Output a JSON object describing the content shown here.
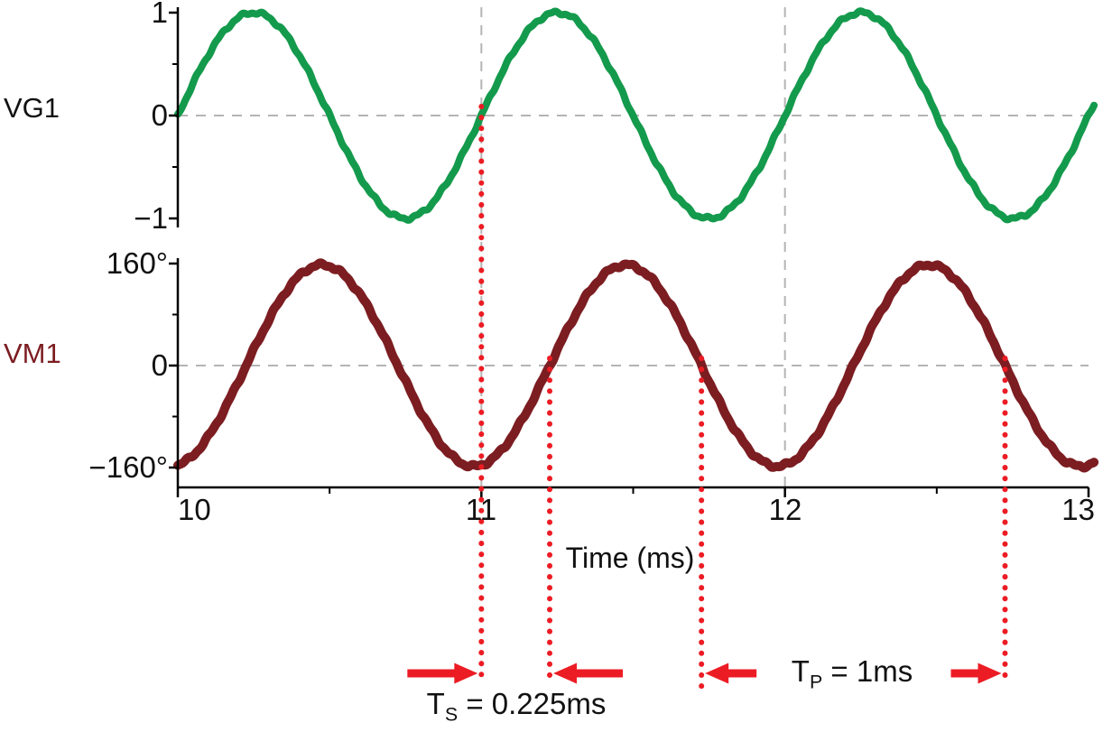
{
  "chart_data": {
    "type": "line",
    "title": "",
    "x": {
      "label": "Time (ms)",
      "min": 10,
      "max": 13,
      "ticks": [
        "10",
        "11",
        "12",
        "13"
      ],
      "tick_values": [
        10,
        11,
        12,
        13
      ],
      "minor_tick_step_ms": 0.5
    },
    "panels": [
      {
        "id": "VG1",
        "label": "VG1",
        "label_color": "#111111",
        "ymin": -1,
        "ymax": 1,
        "ticks": [
          {
            "label": "1",
            "value": 1
          },
          {
            "label": "0",
            "value": 0
          },
          {
            "label": "−1",
            "value": -1
          }
        ],
        "series": {
          "name": "VG1",
          "color": "#149a4c",
          "waveform": "sine",
          "amplitude": 1,
          "period_ms": 1,
          "zero_rising_at_ms": 10
        }
      },
      {
        "id": "VM1",
        "label": "VM1",
        "label_color": "#7c1d21",
        "ymin": -160,
        "ymax": 160,
        "ticks": [
          {
            "label": "160°",
            "value": 160
          },
          {
            "label": "0",
            "value": 0
          },
          {
            "label": "−160°",
            "value": -160
          }
        ],
        "series": {
          "name": "VM1",
          "color": "#7c1d21",
          "waveform": "sine",
          "amplitude": 158,
          "period_ms": 1,
          "zero_rising_at_ms": 10.225
        }
      }
    ],
    "gridlines": {
      "color": "#b4b4b4",
      "horizontal_at_value": 0,
      "vertical_at_ms": [
        11,
        12
      ]
    },
    "axis_color": "#000000",
    "annotations": {
      "color": "#ec1c24",
      "marker_lines_ms": [
        11,
        11.225,
        11.725,
        12.725
      ],
      "ts_value_ms": 0.225,
      "tp_value_ms": 1,
      "ts_label": {
        "pre": "T",
        "sub": "S",
        "post": " = 0.225ms"
      },
      "tp_label": {
        "pre": "T",
        "sub": "P",
        "post": " = 1ms"
      }
    }
  }
}
